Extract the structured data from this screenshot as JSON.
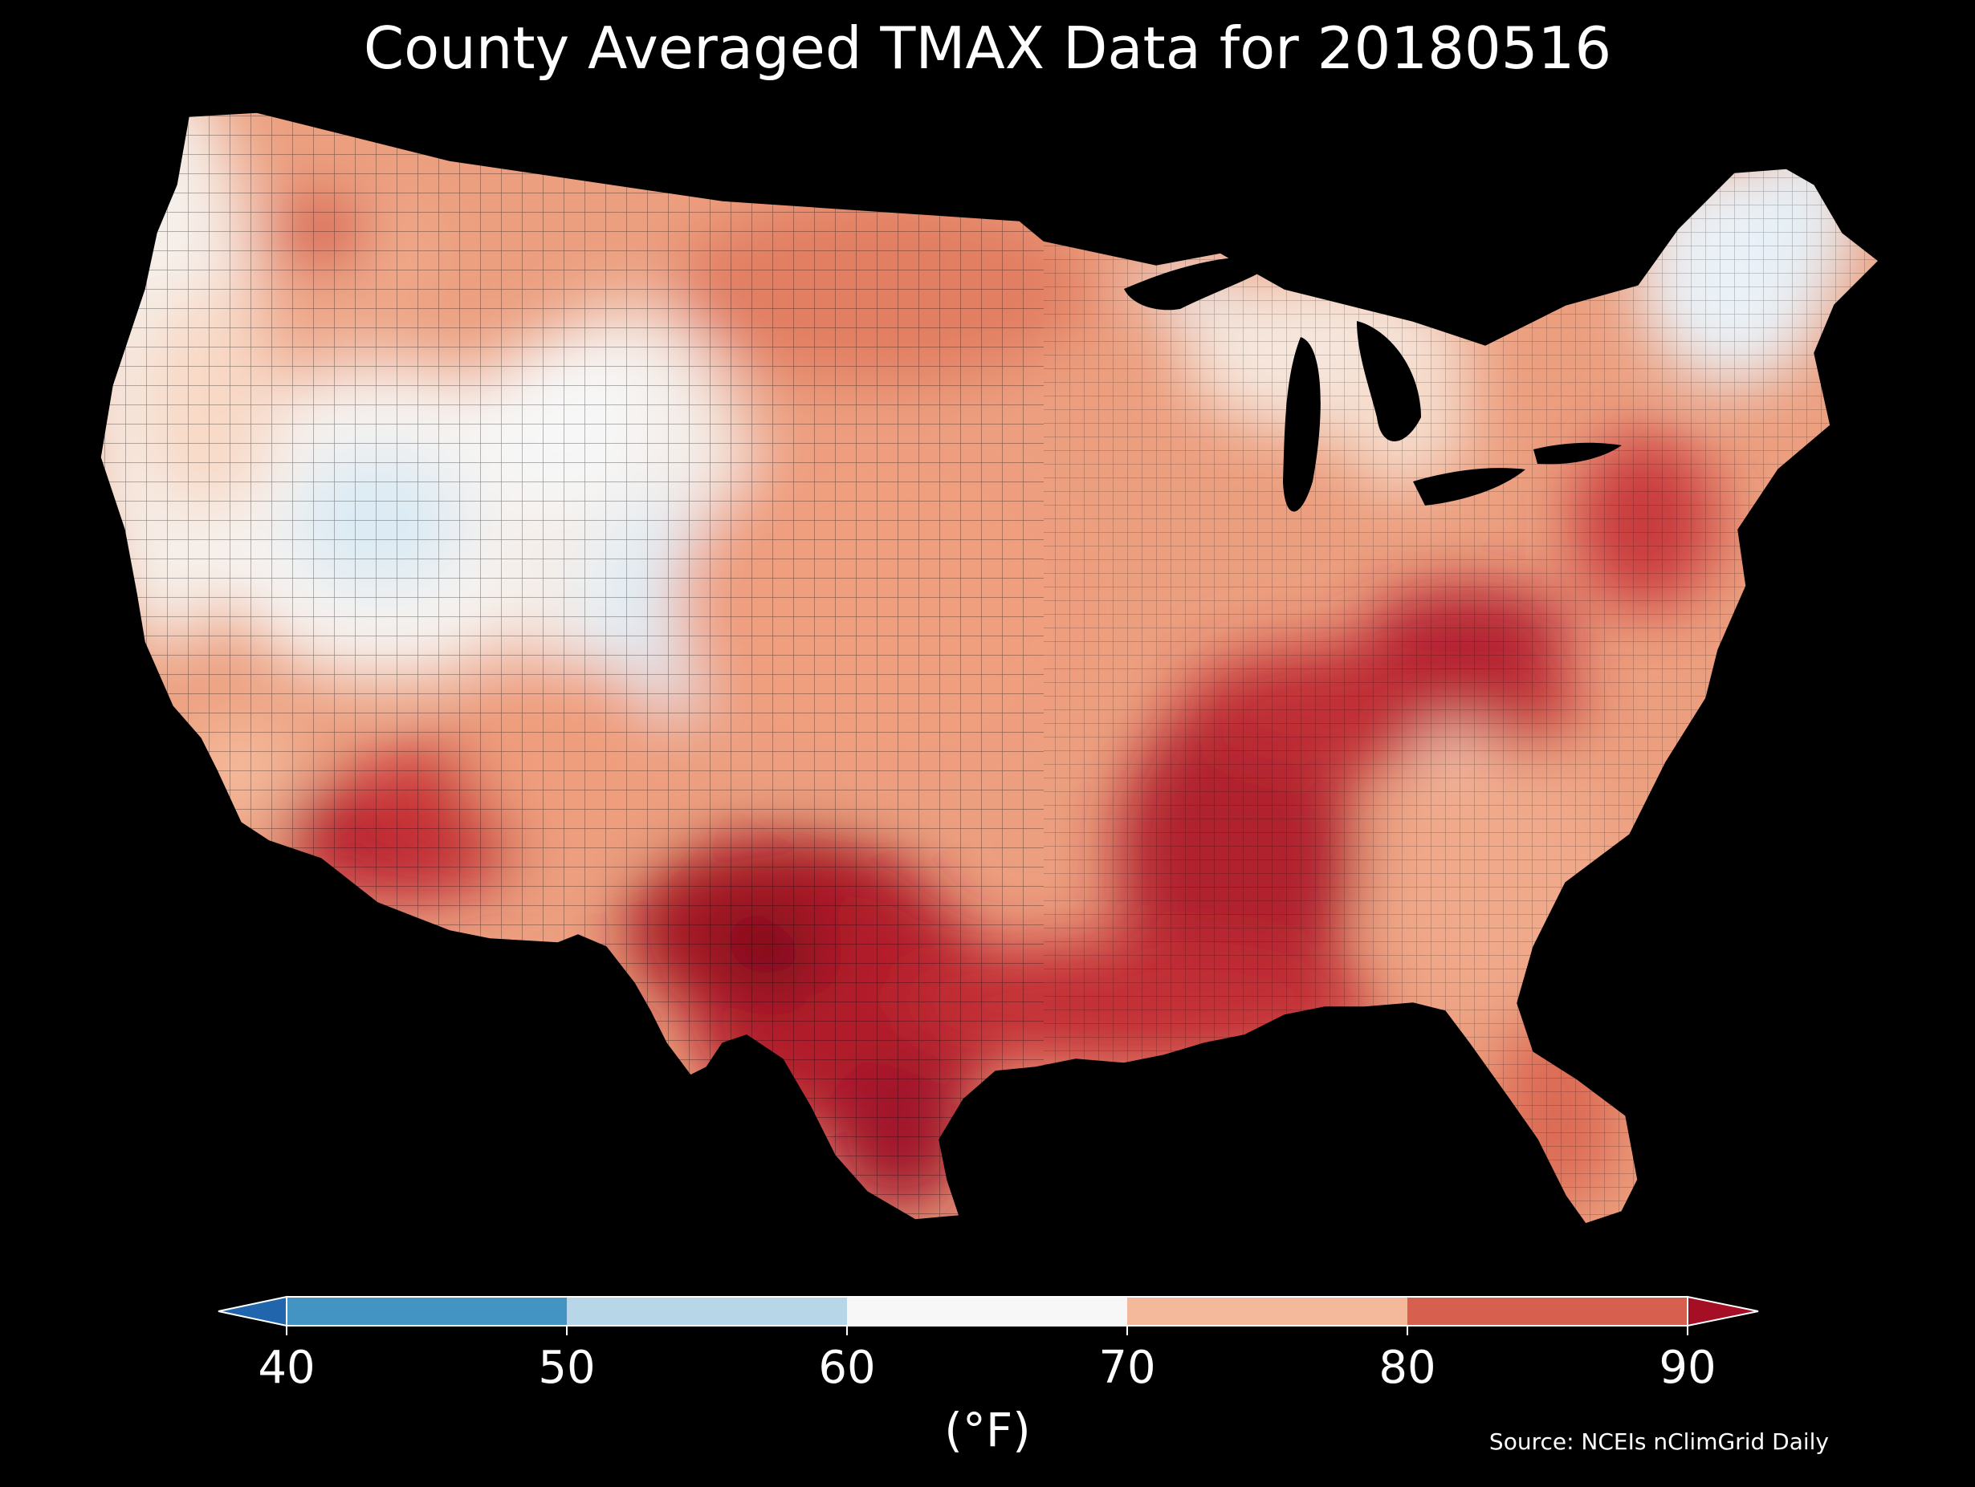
{
  "title": "County Averaged TMAX Data for 20180516",
  "source": "Source: NCEIs nClimGrid Daily",
  "colorbar": {
    "unit_label": "(°F)",
    "ticks": [
      "40",
      "50",
      "60",
      "70",
      "80",
      "90"
    ],
    "bins": [
      {
        "range": [
          40,
          50
        ],
        "color": "#4393c3"
      },
      {
        "range": [
          50,
          60
        ],
        "color": "#b7d7e8"
      },
      {
        "range": [
          60,
          70
        ],
        "color": "#f7f7f7"
      },
      {
        "range": [
          70,
          80
        ],
        "color": "#f4b99a"
      },
      {
        "range": [
          80,
          90
        ],
        "color": "#d6604d"
      }
    ],
    "under_color": "#2166ac",
    "over_color": "#a50f26",
    "extend": "both"
  },
  "map": {
    "region": "contiguous United States",
    "variable": "TMAX",
    "background": "#000000",
    "boundaries": "counties"
  }
}
